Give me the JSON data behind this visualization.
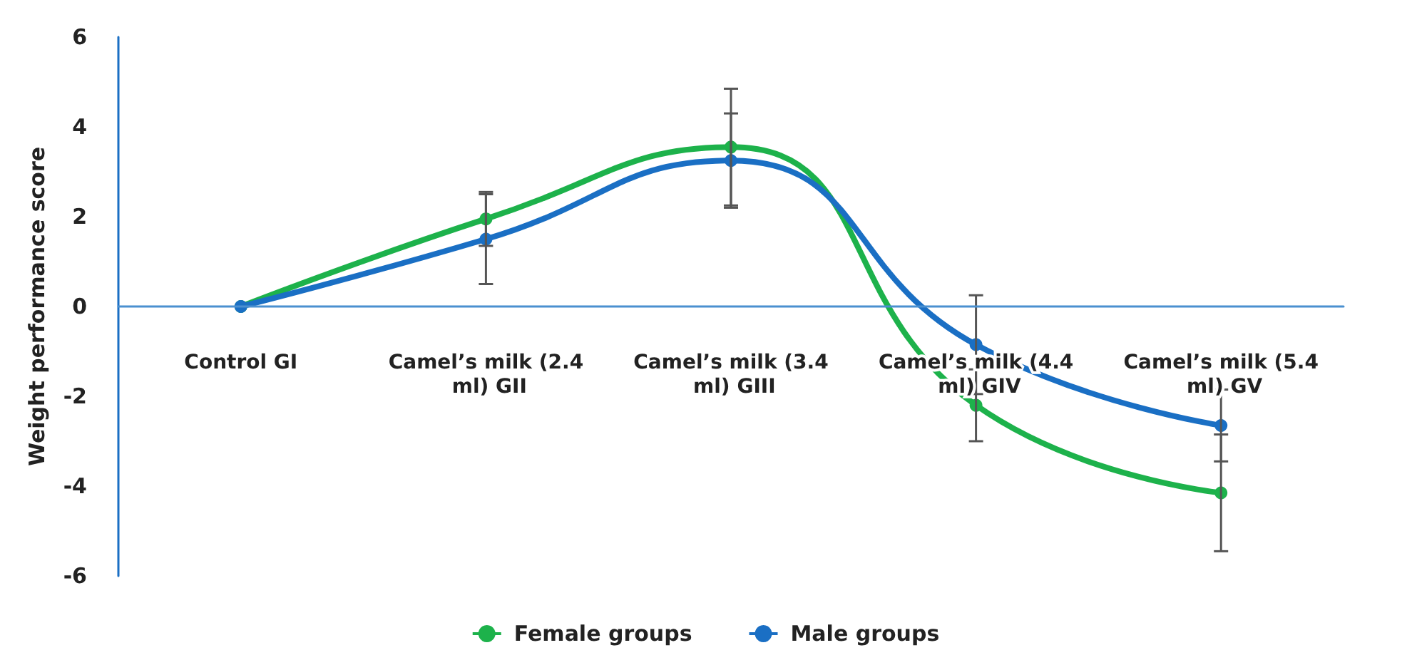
{
  "chart_data": {
    "type": "line",
    "ylabel": "Weight performance score",
    "categories": [
      "Control GI",
      "Camel’s milk (2.4 ml) GII",
      "Camel’s milk (3.4 ml) GIII",
      "Camel’s milk (4.4 ml) GIV",
      "Camel’s milk (5.4 ml) GV"
    ],
    "series": [
      {
        "name": "Female groups",
        "color": "#1db24b",
        "values": [
          0,
          1.95,
          3.55,
          -2.2,
          -4.15
        ],
        "errors": [
          null,
          0.6,
          1.3,
          0.8,
          1.3
        ]
      },
      {
        "name": "Male groups",
        "color": "#1a6fc4",
        "values": [
          0,
          1.5,
          3.25,
          -0.85,
          -2.65
        ],
        "errors": [
          null,
          1.0,
          1.05,
          1.1,
          0.8
        ]
      }
    ],
    "ylim": [
      -6,
      6
    ],
    "yticks": [
      -6,
      -4,
      -2,
      0,
      2,
      4,
      6
    ],
    "grid": false,
    "legend": "bottom",
    "marker": "circle",
    "line_style": "solid"
  }
}
